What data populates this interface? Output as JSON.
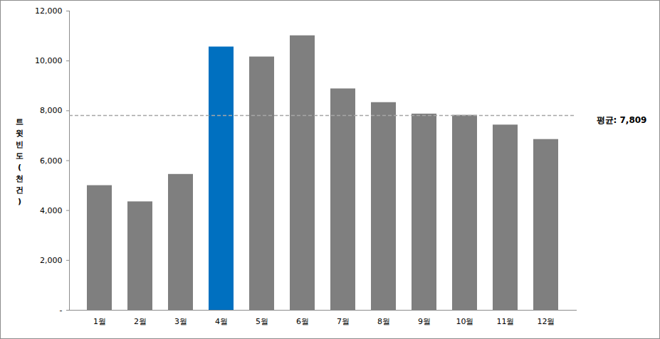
{
  "chart_data": {
    "type": "bar",
    "ylabel": "트윗빈도(천건)",
    "categories": [
      "1월",
      "2월",
      "3월",
      "4월",
      "5월",
      "6월",
      "7월",
      "8월",
      "9월",
      "10월",
      "11월",
      "12월"
    ],
    "values": [
      5000,
      4350,
      5450,
      10560,
      10160,
      11010,
      8880,
      8330,
      7870,
      7820,
      7430,
      6850
    ],
    "colors": [
      "#7f7f7f",
      "#7f7f7f",
      "#7f7f7f",
      "#0070c0",
      "#7f7f7f",
      "#7f7f7f",
      "#7f7f7f",
      "#7f7f7f",
      "#7f7f7f",
      "#7f7f7f",
      "#7f7f7f",
      "#7f7f7f"
    ],
    "ylim": [
      0,
      12000
    ],
    "yticks": [
      {
        "value": 0,
        "label": "-"
      },
      {
        "value": 2000,
        "label": "2,000"
      },
      {
        "value": 4000,
        "label": "4,000"
      },
      {
        "value": 6000,
        "label": "6,000"
      },
      {
        "value": 8000,
        "label": "8,000"
      },
      {
        "value": 10000,
        "label": "10,000"
      },
      {
        "value": 12000,
        "label": "12,000"
      }
    ],
    "grid": false,
    "reference_line": {
      "value": 7809,
      "label": "평균: 7,809"
    }
  }
}
